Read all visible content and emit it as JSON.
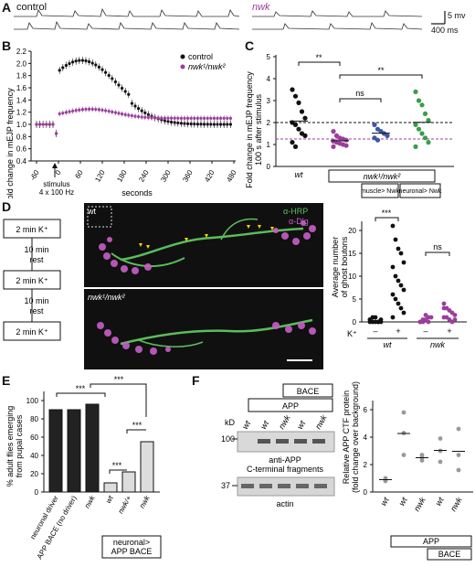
{
  "colors": {
    "control": "#111111",
    "mutant": "#9c3d9c",
    "green": "#3a9c4a",
    "blue": "#3b57a7",
    "grey_bar": "#c8c8c8",
    "magenta": "#c85ec8"
  },
  "panelA": {
    "label": "A",
    "control": "control",
    "mutant": "nwk",
    "scale_mv": "5 mv",
    "scale_ms": "400 ms"
  },
  "panelB": {
    "label": "B",
    "ylabel": "Fold change in mEJP frequency",
    "xlabel": "seconds",
    "legend": [
      "control",
      "nwk¹/nwk²"
    ],
    "stimulus": "stimulus",
    "stimulus2": "4 x 100 Hz",
    "yticks": [
      "0.4",
      "0.6",
      "0.8",
      "1.0",
      "1.2",
      "1.4",
      "1.6",
      "1.8",
      "2.0",
      "2.2"
    ],
    "xticks": [
      "-60",
      "0",
      "60",
      "120",
      "180",
      "240",
      "300",
      "360",
      "420",
      "480"
    ]
  },
  "panelC": {
    "label": "C",
    "ylabel1": "Fold change in mEJP frequency",
    "ylabel2": "100 s after stimulus",
    "yticks": [
      "0",
      "1",
      "2",
      "3",
      "4",
      "5"
    ],
    "xlabels": [
      "wt"
    ],
    "genotype": "nwk¹/nwk²",
    "box1": "muscle> Nwk",
    "box2": "neuronal> Nwk",
    "sig": [
      "**",
      "ns",
      "**"
    ]
  },
  "panelD": {
    "label": "D",
    "protocol": [
      "2 min K⁺",
      "10 min rest",
      "2 min K⁺",
      "10 min rest",
      "2 min K⁺"
    ],
    "img_wt": "wt",
    "img_mut": "nwk¹/nwk²",
    "stain1": "α-HRP",
    "stain2": "α-Dlg",
    "ylabel": "Average number of ghost boutons",
    "yticks": [
      "0",
      "5",
      "10",
      "15",
      "20"
    ],
    "klabel": "K⁺",
    "kvals": [
      "–",
      "+",
      "–",
      "+"
    ],
    "groups": [
      "wt",
      "nwk"
    ],
    "sig": [
      "***",
      "ns"
    ]
  },
  "panelE": {
    "label": "E",
    "ylabel": "% adult flies emerging from pupal cases",
    "yticks": [
      "0",
      "20",
      "40",
      "60",
      "80",
      "100"
    ],
    "xlabels": [
      "neuronal driver",
      "APP BACE (no driver)",
      "nwk",
      "wt",
      "nwk/+",
      "nwk"
    ],
    "values": [
      90,
      90,
      96,
      10,
      22,
      55
    ],
    "box": "neuronal> APP BACE",
    "sig": [
      "***",
      "***",
      "***",
      "***"
    ]
  },
  "panelF": {
    "label": "F",
    "bace": "BACE",
    "app": "APP",
    "kd": "kD",
    "lanes": [
      "wt",
      "wt",
      "nwk",
      "wt",
      "nwk"
    ],
    "mw": [
      "100",
      "37"
    ],
    "blot1": "anti-APP",
    "blot1b": "C-terminal fragments",
    "blot2": "actin",
    "ylabel1": "Relative APP CTF protein",
    "ylabel2": "(fold change over background)",
    "yticks": [
      "0",
      "2",
      "4",
      "6"
    ],
    "xlabels": [
      "wt",
      "wt",
      "nwk",
      "wt",
      "nwk"
    ],
    "app2": "APP",
    "bace2": "BACE"
  }
}
